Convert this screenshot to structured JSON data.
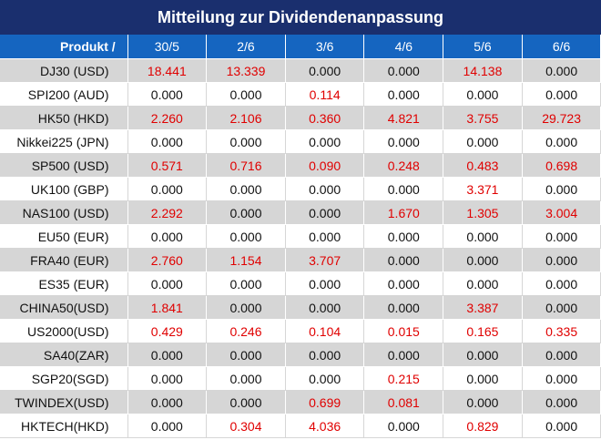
{
  "title": "Mitteilung zur Dividendenanpassung",
  "columns": [
    "Produkt /",
    "30/5",
    "2/6",
    "3/6",
    "4/6",
    "5/6",
    "6/6"
  ],
  "rows": [
    {
      "product": "DJ30 (USD)",
      "values": [
        "18.441",
        "13.339",
        "0.000",
        "0.000",
        "14.138",
        "0.000"
      ]
    },
    {
      "product": "SPI200 (AUD)",
      "values": [
        "0.000",
        "0.000",
        "0.114",
        "0.000",
        "0.000",
        "0.000"
      ]
    },
    {
      "product": "HK50 (HKD)",
      "values": [
        "2.260",
        "2.106",
        "0.360",
        "4.821",
        "3.755",
        "29.723"
      ]
    },
    {
      "product": "Nikkei225 (JPN)",
      "values": [
        "0.000",
        "0.000",
        "0.000",
        "0.000",
        "0.000",
        "0.000"
      ]
    },
    {
      "product": "SP500 (USD)",
      "values": [
        "0.571",
        "0.716",
        "0.090",
        "0.248",
        "0.483",
        "0.698"
      ]
    },
    {
      "product": "UK100 (GBP)",
      "values": [
        "0.000",
        "0.000",
        "0.000",
        "0.000",
        "3.371",
        "0.000"
      ]
    },
    {
      "product": "NAS100 (USD)",
      "values": [
        "2.292",
        "0.000",
        "0.000",
        "1.670",
        "1.305",
        "3.004"
      ]
    },
    {
      "product": "EU50 (EUR)",
      "values": [
        "0.000",
        "0.000",
        "0.000",
        "0.000",
        "0.000",
        "0.000"
      ]
    },
    {
      "product": "FRA40 (EUR)",
      "values": [
        "2.760",
        "1.154",
        "3.707",
        "0.000",
        "0.000",
        "0.000"
      ]
    },
    {
      "product": "ES35 (EUR)",
      "values": [
        "0.000",
        "0.000",
        "0.000",
        "0.000",
        "0.000",
        "0.000"
      ]
    },
    {
      "product": "CHINA50(USD)",
      "values": [
        "1.841",
        "0.000",
        "0.000",
        "0.000",
        "3.387",
        "0.000"
      ]
    },
    {
      "product": "US2000(USD)",
      "values": [
        "0.429",
        "0.246",
        "0.104",
        "0.015",
        "0.165",
        "0.335"
      ]
    },
    {
      "product": "SA40(ZAR)",
      "values": [
        "0.000",
        "0.000",
        "0.000",
        "0.000",
        "0.000",
        "0.000"
      ]
    },
    {
      "product": "SGP20(SGD)",
      "values": [
        "0.000",
        "0.000",
        "0.000",
        "0.215",
        "0.000",
        "0.000"
      ]
    },
    {
      "product": "TWINDEX(USD)",
      "values": [
        "0.000",
        "0.000",
        "0.699",
        "0.081",
        "0.000",
        "0.000"
      ]
    },
    {
      "product": "HKTECH(HKD)",
      "values": [
        "0.000",
        "0.304",
        "4.036",
        "0.000",
        "0.829",
        "0.000"
      ]
    }
  ],
  "colors": {
    "title_bg": "#1a2f6e",
    "header_bg": "#1565c0",
    "shaded_row": "#d6d6d6",
    "nonzero_value": "#e00000",
    "zero_value": "#111111"
  }
}
